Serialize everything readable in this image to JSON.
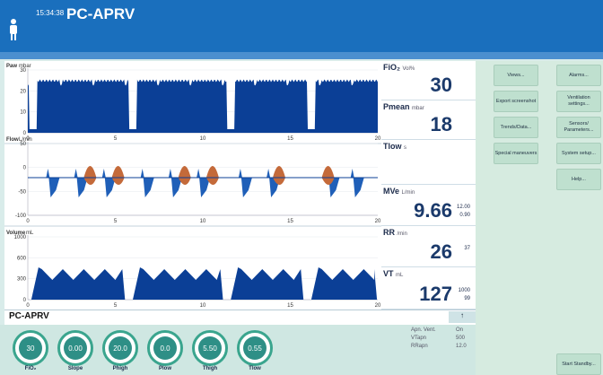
{
  "header": {
    "time": "15:34:38",
    "mode": "PC-APRV"
  },
  "waveforms": [
    {
      "label": "Paw",
      "unit": "mbar",
      "yticks": [
        "30",
        "20",
        "10",
        "0"
      ],
      "xticks": [
        "0",
        "5",
        "10",
        "15",
        "20"
      ]
    },
    {
      "label": "Flow",
      "unit": "L/min",
      "yticks": [
        "50",
        "0",
        "-50",
        "-100"
      ],
      "xticks": [
        "0",
        "5",
        "10",
        "15",
        "20"
      ]
    },
    {
      "label": "Volume",
      "unit": "mL",
      "yticks": [
        "1000",
        "600",
        "300",
        "0"
      ],
      "xticks": [
        "0",
        "5",
        "10",
        "15",
        "20"
      ]
    }
  ],
  "values": [
    {
      "label": "FiO₂",
      "unit": "Vol%",
      "value": "30",
      "small": []
    },
    {
      "label": "Pmean",
      "unit": "mbar",
      "value": "18",
      "small": []
    },
    {
      "label": "Tlow",
      "unit": "s",
      "value": "",
      "small": []
    },
    {
      "label": "MVe",
      "unit": "L/min",
      "value": "9.66",
      "small": [
        "12.00",
        "0.90"
      ]
    },
    {
      "label": "RR",
      "unit": "/min",
      "value": "26",
      "small": [
        "37"
      ]
    },
    {
      "label": "VT",
      "unit": "mL",
      "value": "127",
      "small": [
        "1000",
        "99"
      ]
    }
  ],
  "buttons_left": [
    "Views...",
    "Export screenshot",
    "Trends/Data...",
    "Special maneuvers"
  ],
  "buttons_right": [
    "Alarms...",
    "Ventilation settings...",
    "Sensors/ Parameters...",
    "System setup...",
    "Help..."
  ],
  "standby": "Start Standby...",
  "mode_bar": {
    "mode": "PC-APRV",
    "button": "↑"
  },
  "knobs": [
    {
      "value": "30",
      "label": "FiO₂"
    },
    {
      "value": "0.00",
      "label": "Slope"
    },
    {
      "value": "20.0",
      "label": "Phigh"
    },
    {
      "value": "0.0",
      "label": "Plow"
    },
    {
      "value": "5.50",
      "label": "Thigh"
    },
    {
      "value": "0.55",
      "label": "Tlow"
    }
  ],
  "apnea": [
    {
      "label": "Apn. Vent.",
      "value": "On"
    },
    {
      "label": "VTapn",
      "value": "500"
    },
    {
      "label": "RRapn",
      "value": "12.0"
    }
  ]
}
